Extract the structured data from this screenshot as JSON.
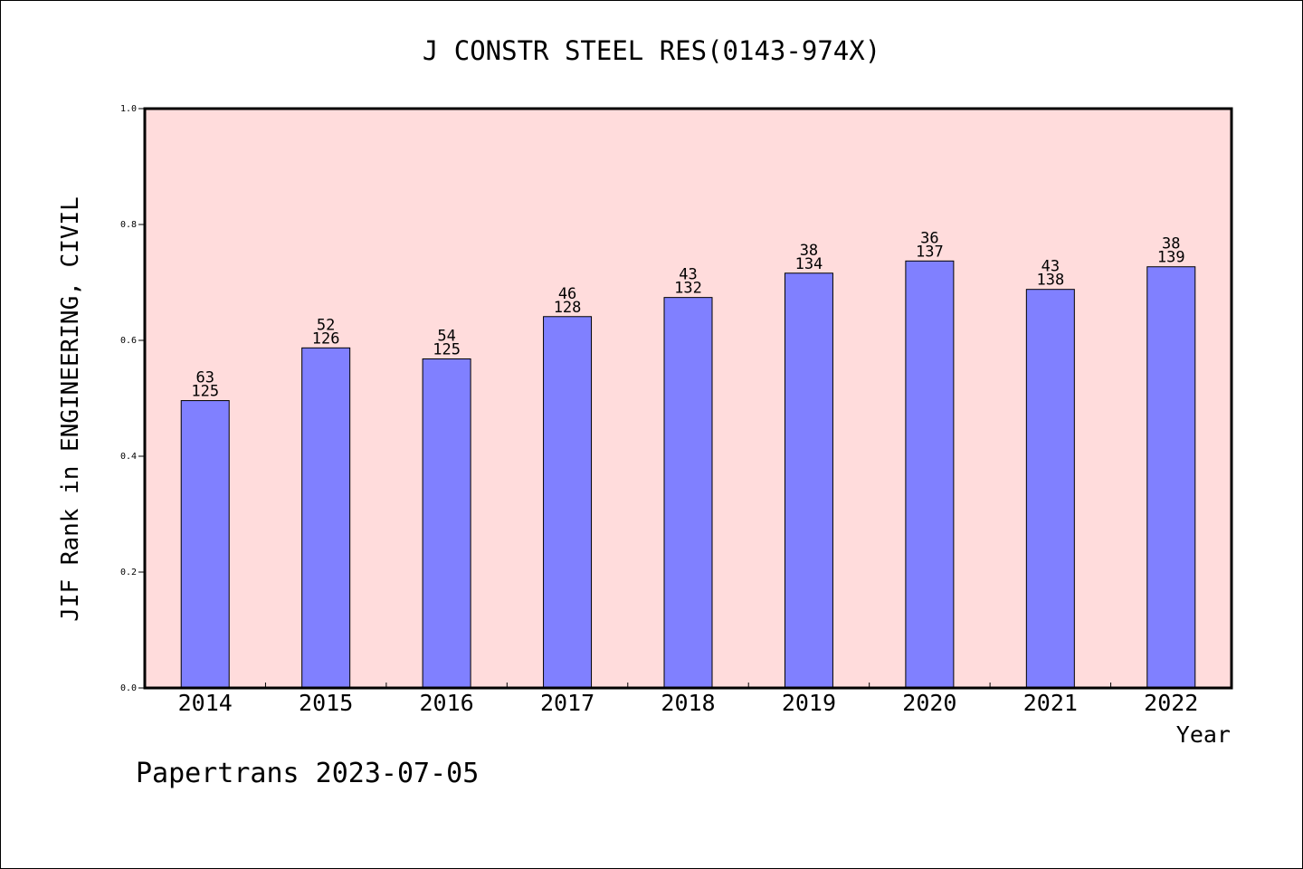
{
  "chart_data": {
    "type": "bar",
    "title": "J CONSTR STEEL RES(0143-974X)",
    "xlabel": "Year",
    "ylabel": "JIF Rank in ENGINEERING, CIVIL",
    "ylim": [
      0,
      1.0
    ],
    "yticks": [
      "0.0",
      "0.2",
      "0.4",
      "0.6",
      "0.8",
      "1.0"
    ],
    "categories": [
      "2014",
      "2015",
      "2016",
      "2017",
      "2018",
      "2019",
      "2020",
      "2021",
      "2022"
    ],
    "values": [
      0.496,
      0.587,
      0.568,
      0.641,
      0.674,
      0.716,
      0.737,
      0.688,
      0.727
    ],
    "rank": [
      "63",
      "52",
      "54",
      "46",
      "43",
      "38",
      "36",
      "43",
      "38"
    ],
    "total": [
      "125",
      "126",
      "125",
      "128",
      "132",
      "134",
      "137",
      "138",
      "139"
    ],
    "grid": false,
    "colors": {
      "plot_background": "#ffdcdc",
      "bar_fill": "#8080ff",
      "bar_stroke": "#000000"
    }
  },
  "footer": "Papertrans 2023-07-05"
}
